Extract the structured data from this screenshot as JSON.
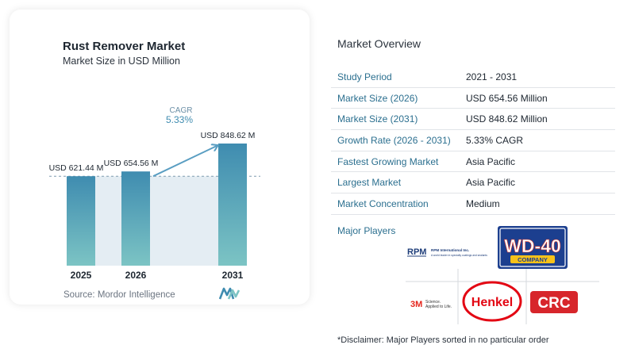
{
  "chart_card": {
    "title": "Rust Remover Market",
    "subtitle": "Market Size in USD Million",
    "source": "Source:  Mordor Intelligence",
    "cagr_label": "CAGR",
    "cagr_value": "5.33%"
  },
  "chart_data": {
    "type": "bar",
    "title": "Rust Remover Market",
    "subtitle": "Market Size in USD Million",
    "categories": [
      "2025",
      "2026",
      "2031"
    ],
    "values": [
      621.44,
      654.56,
      848.62
    ],
    "data_labels": [
      "USD 621.44 M",
      "USD 654.56 M",
      "USD 848.62 M"
    ],
    "ylim": [
      0,
      900
    ],
    "grid": false,
    "reference_line": 621.44,
    "bar_color_top": "#3f8cb0",
    "bar_color_bottom": "#7cc4c4",
    "band_color": "#e4edf3",
    "arrow_color": "#5a9ec2"
  },
  "overview": {
    "title": "Market Overview",
    "rows": [
      {
        "label": "Study Period",
        "value": "2021 - 2031"
      },
      {
        "label": "Market Size (2026)",
        "value": "USD 654.56 Million"
      },
      {
        "label": "Market Size (2031)",
        "value": "USD 848.62 Million"
      },
      {
        "label": "Growth Rate (2026 - 2031)",
        "value": "5.33% CAGR"
      },
      {
        "label": "Fastest Growing Market",
        "value": "Asia Pacific"
      },
      {
        "label": "Largest Market",
        "value": "Asia Pacific"
      },
      {
        "label": "Market Concentration",
        "value": "Medium"
      }
    ],
    "players_title": "Major Players",
    "disclaimer": "*Disclaimer: Major Players sorted in no particular order"
  },
  "players": [
    {
      "name": "RPM International Inc.",
      "mark": "RPM",
      "tagline": "A world leader in specialty coatings and sealants"
    },
    {
      "name": "WD-40 Company",
      "mark": "WD-40",
      "sub": "COMPANY"
    },
    {
      "name": "3M",
      "mark": "3M",
      "tagline": "Science.",
      "tagline2": "Applied to Life."
    },
    {
      "name": "Henkel",
      "mark": "Henkel"
    },
    {
      "name": "CRC",
      "mark": "CRC"
    }
  ]
}
